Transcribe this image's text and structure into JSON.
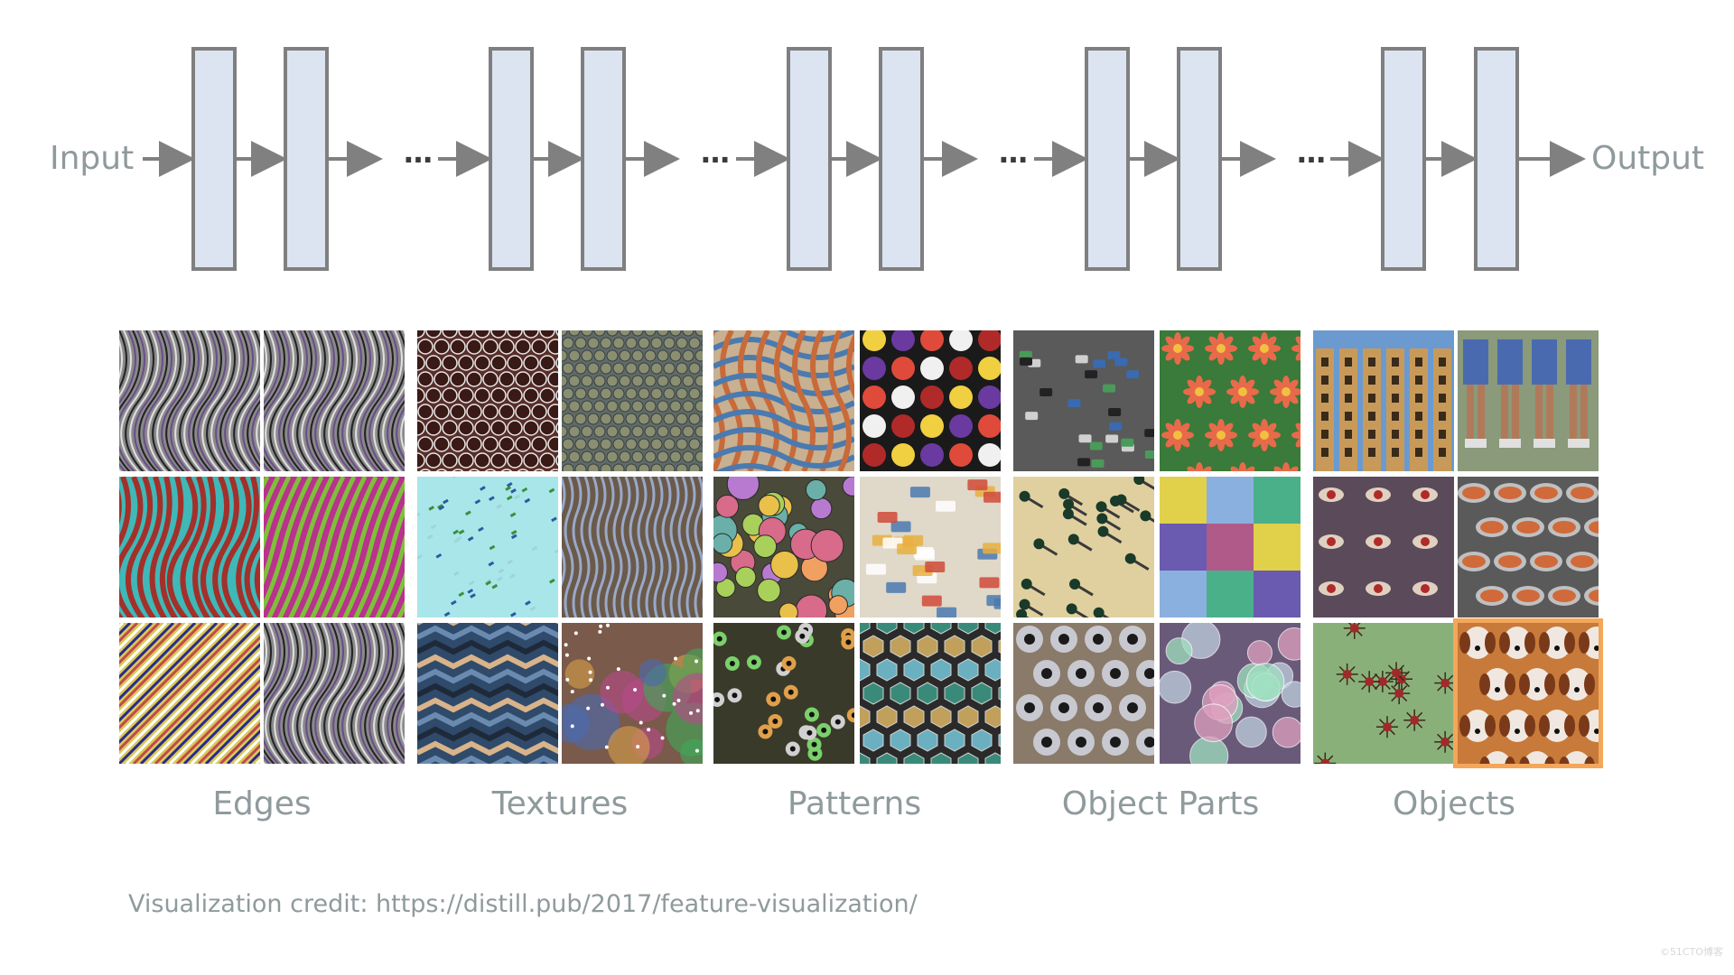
{
  "diagram": {
    "input_label": "Input",
    "output_label": "Output",
    "ellipsis": "…",
    "layer_fill": "#dce4f2",
    "layer_stroke": "#7f7f7f",
    "arrow_color": "#808080"
  },
  "groups": [
    {
      "label": "Edges",
      "tiles": [
        "edges-1",
        "edges-2",
        "edges-3",
        "edges-4",
        "edges-5",
        "edges-6"
      ]
    },
    {
      "label": "Textures",
      "tiles": [
        "textures-1",
        "textures-2",
        "textures-3",
        "textures-4",
        "textures-5",
        "textures-6"
      ]
    },
    {
      "label": "Patterns",
      "tiles": [
        "patterns-1",
        "patterns-2",
        "patterns-3",
        "patterns-4",
        "patterns-5",
        "patterns-6"
      ]
    },
    {
      "label": "Object Parts",
      "tiles": [
        "parts-1",
        "parts-2",
        "parts-3",
        "parts-4",
        "parts-5",
        "parts-6"
      ]
    },
    {
      "label": "Objects",
      "tiles": [
        "objects-1",
        "objects-2",
        "objects-3",
        "objects-4",
        "objects-5",
        "objects-6"
      ]
    }
  ],
  "highlight_color": "#f4a65a",
  "credit": "Visualization credit: https://distill.pub/2017/feature-visualization/",
  "watermark": "©51CTO博客"
}
